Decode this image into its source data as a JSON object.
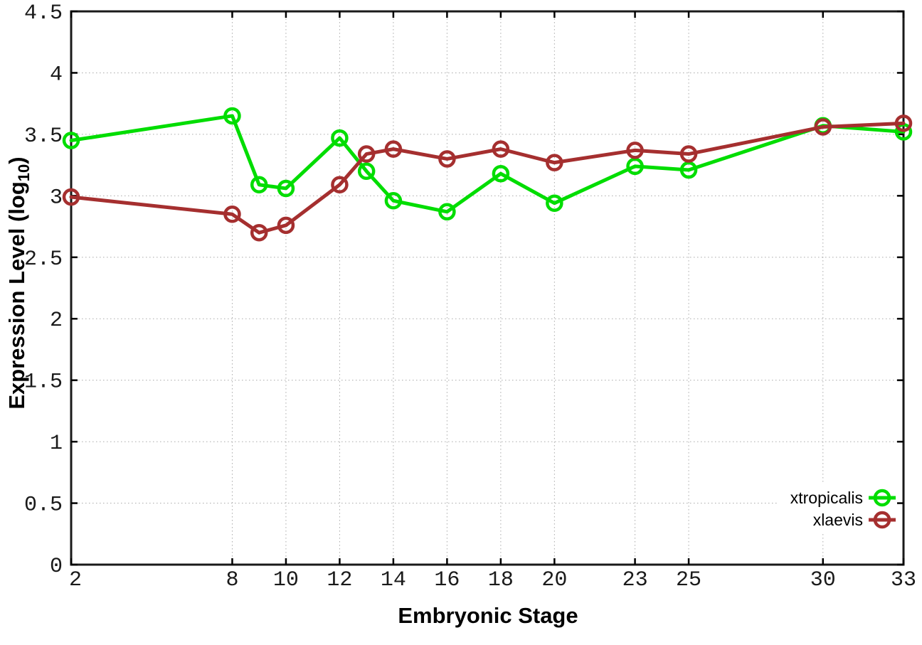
{
  "chart_data": {
    "type": "line",
    "title": "",
    "xlabel": "Embryonic Stage",
    "ylabel": "Expression Level (log10)",
    "ylabel_parts": {
      "pre": "Expression Level (log",
      "sub": "10",
      "post": ")"
    },
    "x": [
      2,
      8,
      9,
      10,
      12,
      13,
      14,
      16,
      18,
      20,
      23,
      25,
      30,
      33
    ],
    "series": [
      {
        "name": "xtropicalis",
        "color": "#00dd00",
        "values": [
          3.45,
          3.65,
          3.09,
          3.06,
          3.47,
          3.2,
          2.96,
          2.87,
          3.18,
          2.94,
          3.24,
          3.21,
          3.57,
          3.52
        ]
      },
      {
        "name": "xlaevis",
        "color": "#a52f2f",
        "values": [
          2.99,
          2.85,
          2.7,
          2.76,
          3.09,
          3.34,
          3.38,
          3.3,
          3.38,
          3.27,
          3.37,
          3.34,
          3.56,
          3.59
        ]
      }
    ],
    "xticks": [
      2,
      8,
      10,
      12,
      14,
      16,
      18,
      20,
      23,
      25,
      30,
      33
    ],
    "xtick_labels": [
      "2",
      "8",
      "10",
      "12",
      "14",
      "16",
      "18",
      "20",
      "23",
      "25",
      "30",
      "33"
    ],
    "yticks": [
      0,
      0.5,
      1,
      1.5,
      2,
      2.5,
      3,
      3.5,
      4,
      4.5
    ],
    "ytick_labels": [
      "0",
      "0.5",
      "1",
      "1.5",
      "2",
      "2.5",
      "3",
      "3.5",
      "4",
      "4.5"
    ],
    "xlim": [
      2,
      33
    ],
    "ylim": [
      0,
      4.5
    ],
    "grid": true,
    "grid_style": "dotted",
    "grid_color": "#aaaaaa",
    "axis_color": "#000000",
    "marker": "open-circle",
    "legend_position": "bottom-right",
    "legend": [
      "xtropicalis",
      "xlaevis"
    ]
  }
}
